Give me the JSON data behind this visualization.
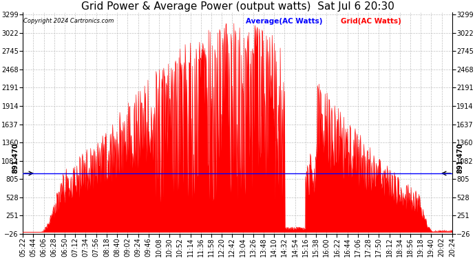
{
  "title": "Grid Power & Average Power (output watts)  Sat Jul 6 20:30",
  "copyright": "Copyright 2024 Cartronics.com",
  "legend_avg": "Average(AC Watts)",
  "legend_grid": "Grid(AC Watts)",
  "avg_value": 891.47,
  "avg_label": "891.470",
  "ymin": -25.9,
  "ymax": 3299.2,
  "yticks": [
    3299.2,
    3022.1,
    2745.0,
    2467.9,
    2190.8,
    1913.7,
    1636.7,
    1359.6,
    1082.5,
    805.4,
    528.3,
    251.2,
    -25.9
  ],
  "fill_color": "#ff0000",
  "line_color": "#ff0000",
  "avg_line_color": "#0000ff",
  "grid_color": "#c0c0c0",
  "background_color": "#ffffff",
  "title_fontsize": 11,
  "tick_fontsize": 7,
  "x_tick_labels": [
    "05:22",
    "05:44",
    "06:06",
    "06:28",
    "06:50",
    "07:12",
    "07:34",
    "07:56",
    "08:18",
    "08:40",
    "09:02",
    "09:24",
    "09:46",
    "10:08",
    "10:30",
    "10:52",
    "11:14",
    "11:36",
    "11:58",
    "12:20",
    "12:42",
    "13:04",
    "13:26",
    "13:48",
    "14:10",
    "14:32",
    "14:54",
    "15:16",
    "15:38",
    "16:00",
    "16:22",
    "16:44",
    "17:06",
    "17:28",
    "17:50",
    "18:12",
    "18:34",
    "18:56",
    "19:18",
    "19:40",
    "20:02",
    "20:24"
  ]
}
